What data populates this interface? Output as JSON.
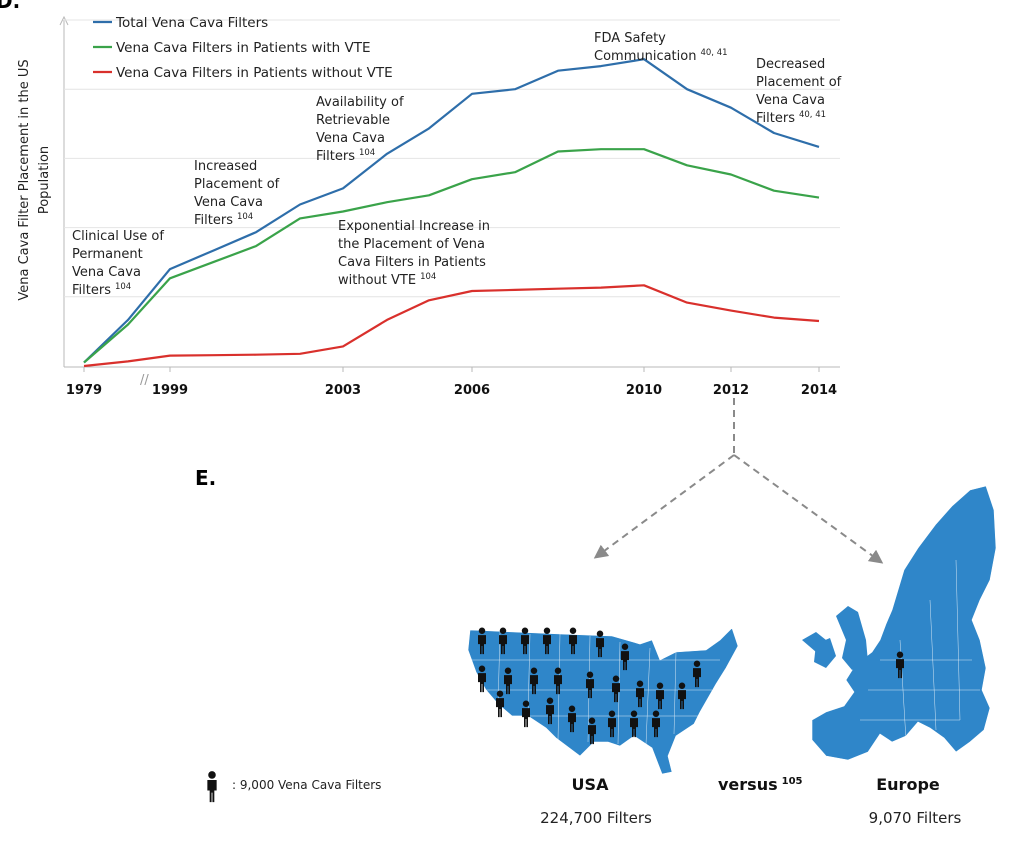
{
  "panel_d_letter": "D.",
  "panel_e_letter": "E.",
  "chart_data": {
    "type": "line",
    "title": "",
    "ylabel_lines": [
      "Vena Cava Filter Placement in the US",
      "Population"
    ],
    "xlabel": "",
    "x_ticks": [
      "1979",
      "1999",
      "2003",
      "2006",
      "2010",
      "2012",
      "2014"
    ],
    "axis_break": "//",
    "x": [
      "1979",
      "1980",
      "1999",
      "2000",
      "2001",
      "2002",
      "2003",
      "2004",
      "2005",
      "2006",
      "2007",
      "2008",
      "2009",
      "2010",
      "2011",
      "2012",
      "2013",
      "2014"
    ],
    "series": [
      {
        "name": "Total Vena Cava Filters",
        "color": "#2e6eaa",
        "values": [
          1.5,
          20,
          42,
          50,
          58,
          70,
          77,
          92,
          103,
          118,
          120,
          128,
          130,
          133,
          120,
          112,
          101,
          95
        ]
      },
      {
        "name": "Vena Cava Filters in Patients with VTE",
        "color": "#3aa34a",
        "values": [
          1.5,
          18,
          38,
          45,
          52,
          64,
          67,
          71,
          74,
          81,
          84,
          93,
          94,
          94,
          87,
          83,
          76,
          73
        ]
      },
      {
        "name": "Vena Cava Filters in Patients without VTE",
        "color": "#d9302c",
        "values": [
          0,
          2,
          4.5,
          4.7,
          4.9,
          5.3,
          8.5,
          20,
          28.5,
          32.5,
          33,
          33.5,
          34,
          35,
          27.5,
          24,
          21,
          19.5
        ]
      }
    ],
    "annotations": [
      {
        "lines": [
          "Clinical Use of",
          "Permanent",
          "Vena Cava",
          "Filters"
        ],
        "ref": "104"
      },
      {
        "lines": [
          "Increased",
          "Placement of",
          "Vena Cava",
          "Filters"
        ],
        "ref": "104"
      },
      {
        "lines": [
          "Availability of",
          "Retrievable",
          "Vena Cava",
          "Filters"
        ],
        "ref": "104"
      },
      {
        "lines": [
          "Exponential Increase in",
          "the Placement of  Vena",
          "Cava Filters in Patients",
          "without VTE"
        ],
        "ref": "104"
      },
      {
        "lines": [
          "FDA Safety",
          "Communication"
        ],
        "ref": "40, 41"
      },
      {
        "lines": [
          "Decreased",
          "Placement of",
          "Vena Cava",
          "Filters"
        ],
        "ref": "40, 41"
      }
    ],
    "legend_position": "top-left"
  },
  "comparison": {
    "left": {
      "region": "USA",
      "count": "224,700 Filters",
      "icons": 25
    },
    "versus": "versus",
    "versus_ref": "105",
    "right": {
      "region": "Europe",
      "count": "9,070 Filters",
      "icons": 1
    },
    "key_label": ": 9,000 Vena Cava Filters",
    "map_color": "#2f86c9"
  }
}
